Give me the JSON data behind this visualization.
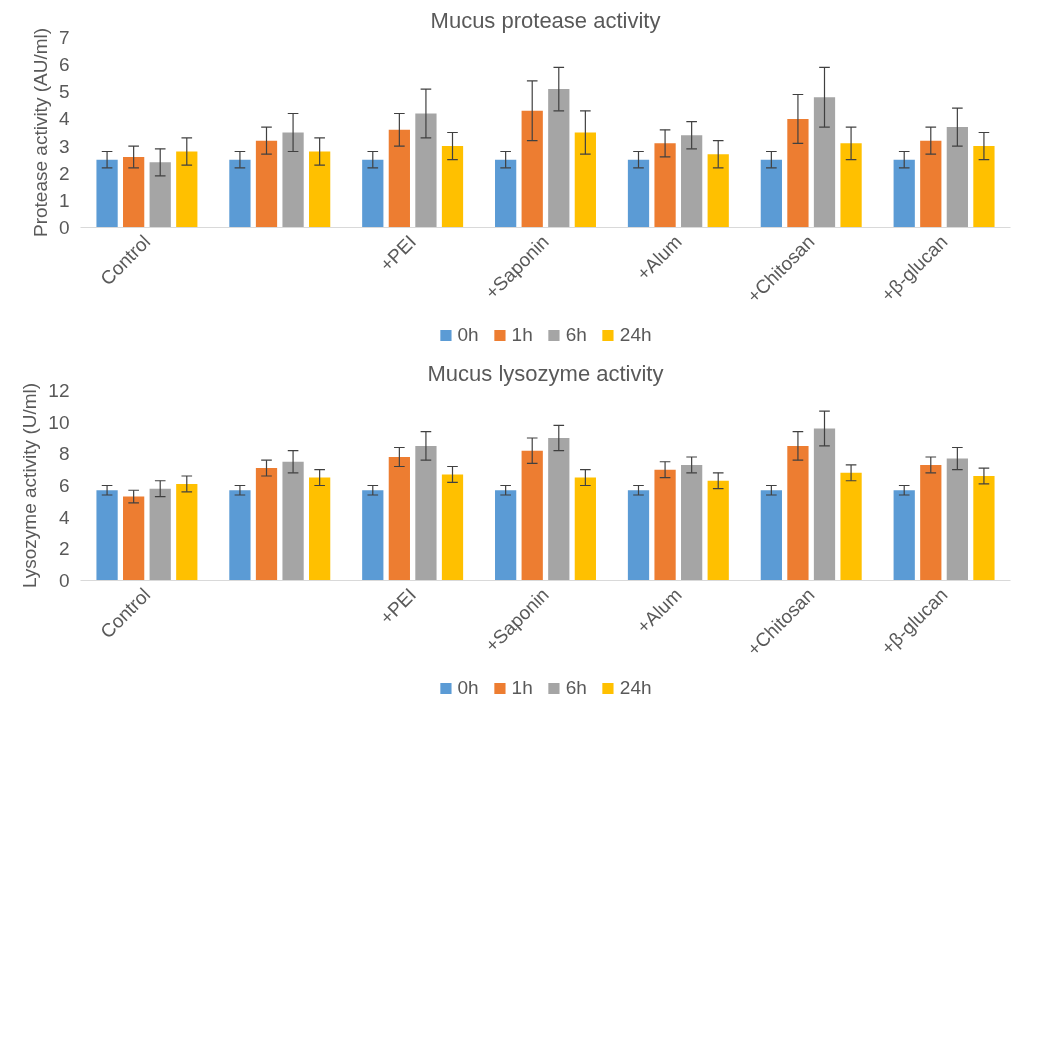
{
  "chart_data": [
    {
      "type": "bar",
      "title": "Mucus protease activity",
      "ylabel": "Protease activity (AU/ml)",
      "categories": [
        "Control",
        null,
        "+PEI",
        "+Saponin",
        "+Alum",
        "+Chitosan",
        "+β-glucan"
      ],
      "ylim": [
        0,
        7
      ],
      "yticks": [
        0,
        1,
        2,
        3,
        4,
        5,
        6,
        7
      ],
      "legend": "bottom",
      "series": [
        {
          "name": "0h",
          "color": "#5b9bd5",
          "values": [
            2.5,
            2.5,
            2.5,
            2.5,
            2.5,
            2.5,
            2.5
          ],
          "errors": [
            0.3,
            0.3,
            0.3,
            0.3,
            0.3,
            0.3,
            0.3
          ]
        },
        {
          "name": "1h",
          "color": "#ed7d31",
          "values": [
            2.6,
            3.2,
            3.6,
            4.3,
            3.1,
            4.0,
            3.2
          ],
          "errors": [
            0.4,
            0.5,
            0.6,
            1.1,
            0.5,
            0.9,
            0.5
          ]
        },
        {
          "name": "6h",
          "color": "#a5a5a5",
          "values": [
            2.4,
            3.5,
            4.2,
            5.1,
            3.4,
            4.8,
            3.7
          ],
          "errors": [
            0.5,
            0.7,
            0.9,
            0.8,
            0.5,
            1.1,
            0.7
          ]
        },
        {
          "name": "24h",
          "color": "#ffc000",
          "values": [
            2.8,
            2.8,
            3.0,
            3.5,
            2.7,
            3.1,
            3.0
          ],
          "errors": [
            0.5,
            0.5,
            0.5,
            0.8,
            0.5,
            0.6,
            0.5
          ]
        }
      ]
    },
    {
      "type": "bar",
      "title": "Mucus lysozyme activity",
      "ylabel": "Lysozyme activity (U/ml)",
      "categories": [
        "Control",
        null,
        "+PEI",
        "+Saponin",
        "+Alum",
        "+Chitosan",
        "+β-glucan"
      ],
      "ylim": [
        0,
        12
      ],
      "yticks": [
        0,
        2,
        4,
        6,
        8,
        10,
        12
      ],
      "legend": "bottom",
      "series": [
        {
          "name": "0h",
          "color": "#5b9bd5",
          "values": [
            5.7,
            5.7,
            5.7,
            5.7,
            5.7,
            5.7,
            5.7
          ],
          "errors": [
            0.3,
            0.3,
            0.3,
            0.3,
            0.3,
            0.3,
            0.3
          ]
        },
        {
          "name": "1h",
          "color": "#ed7d31",
          "values": [
            5.3,
            7.1,
            7.8,
            8.2,
            7.0,
            8.5,
            7.3
          ],
          "errors": [
            0.4,
            0.5,
            0.6,
            0.8,
            0.5,
            0.9,
            0.5
          ]
        },
        {
          "name": "6h",
          "color": "#a5a5a5",
          "values": [
            5.8,
            7.5,
            8.5,
            9.0,
            7.3,
            9.6,
            7.7
          ],
          "errors": [
            0.5,
            0.7,
            0.9,
            0.8,
            0.5,
            1.1,
            0.7
          ]
        },
        {
          "name": "24h",
          "color": "#ffc000",
          "values": [
            6.1,
            6.5,
            6.7,
            6.5,
            6.3,
            6.8,
            6.6
          ],
          "errors": [
            0.5,
            0.5,
            0.5,
            0.5,
            0.5,
            0.5,
            0.5
          ]
        }
      ]
    }
  ]
}
